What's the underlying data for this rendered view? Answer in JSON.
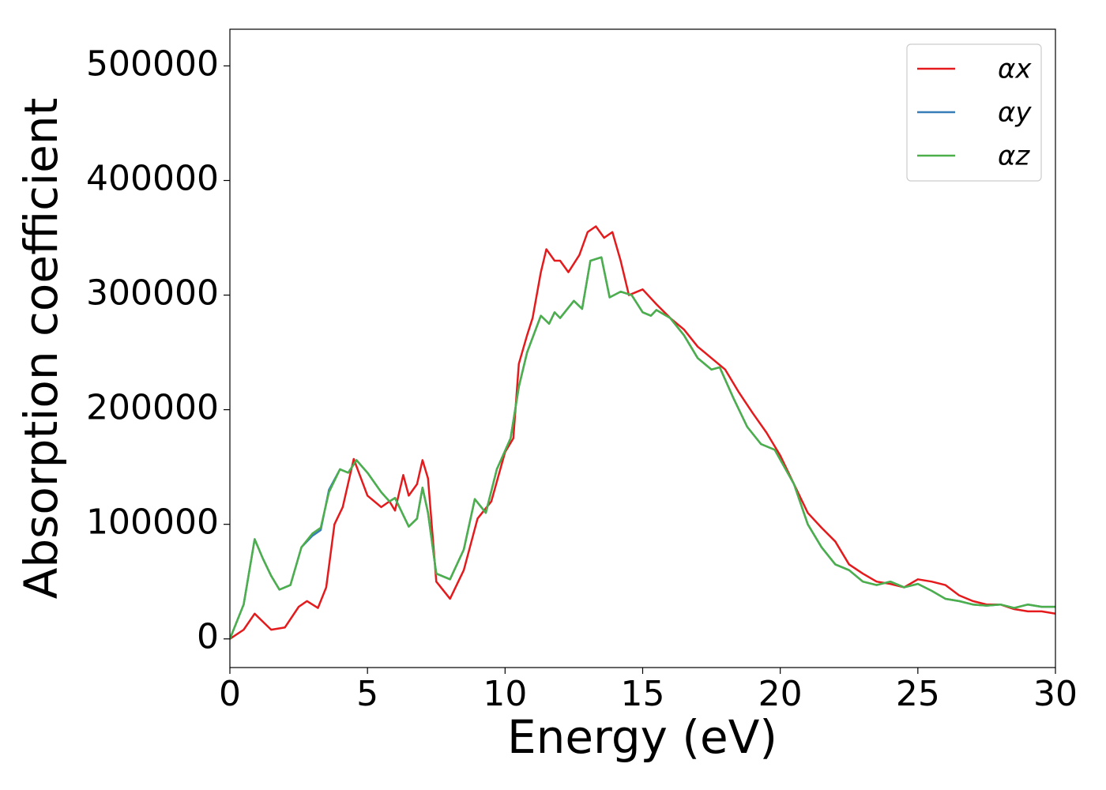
{
  "chart_data": {
    "type": "line",
    "xlabel": "Energy (eV)",
    "ylabel": "Absorption coefficient",
    "xlim": [
      0,
      30
    ],
    "ylim": [
      -25000,
      532000
    ],
    "xticks": [
      0,
      5,
      10,
      15,
      20,
      25,
      30
    ],
    "yticks": [
      0,
      100000,
      200000,
      300000,
      400000,
      500000
    ],
    "legend": "upper right",
    "series": [
      {
        "name": "αx",
        "color": "#e41a1c",
        "x": [
          0,
          0.5,
          0.9,
          1.2,
          1.5,
          2,
          2.5,
          2.8,
          3.2,
          3.5,
          3.8,
          4.1,
          4.5,
          5,
          5.5,
          5.8,
          6,
          6.3,
          6.5,
          6.8,
          7,
          7.2,
          7.5,
          8,
          8.5,
          9,
          9.5,
          10,
          10.3,
          10.5,
          10.8,
          11,
          11.3,
          11.5,
          11.8,
          12,
          12.3,
          12.7,
          13,
          13.3,
          13.6,
          13.9,
          14.2,
          14.5,
          15,
          15.5,
          16,
          16.5,
          17,
          17.5,
          18,
          18.5,
          19,
          19.5,
          20,
          20.5,
          21,
          21.5,
          22,
          22.5,
          23,
          23.5,
          24,
          24.5,
          25,
          25.5,
          26,
          26.5,
          27,
          27.5,
          28,
          28.5,
          29,
          29.5,
          30
        ],
        "values": [
          0,
          8000,
          22000,
          15000,
          8000,
          10000,
          28000,
          33000,
          27000,
          45000,
          100000,
          115000,
          157000,
          125000,
          115000,
          120000,
          112000,
          143000,
          125000,
          135000,
          156000,
          140000,
          50000,
          35000,
          60000,
          105000,
          120000,
          163000,
          175000,
          240000,
          265000,
          280000,
          320000,
          340000,
          330000,
          330000,
          320000,
          335000,
          355000,
          360000,
          350000,
          355000,
          330000,
          300000,
          305000,
          292000,
          280000,
          270000,
          255000,
          245000,
          235000,
          215000,
          197000,
          180000,
          160000,
          135000,
          110000,
          97000,
          85000,
          65000,
          57000,
          50000,
          48000,
          45000,
          52000,
          50000,
          47000,
          38000,
          33000,
          30000,
          30000,
          26000,
          24000,
          24000,
          22000
        ]
      },
      {
        "name": "αy",
        "color": "#377eb8",
        "x": [
          0,
          0.5,
          0.9,
          1.2,
          1.5,
          1.8,
          2.2,
          2.6,
          3,
          3.3,
          3.6,
          4,
          4.3,
          4.6,
          5,
          5.5,
          5.8,
          6,
          6.5,
          6.8,
          7,
          7.2,
          7.5,
          8,
          8.5,
          8.9,
          9.3,
          9.7,
          10.2,
          10.5,
          10.8,
          11.3,
          11.6,
          11.8,
          12,
          12.5,
          12.8,
          13.1,
          13.5,
          13.8,
          14.2,
          14.6,
          15,
          15.3,
          15.5,
          16,
          16.5,
          17,
          17.5,
          17.8,
          18.3,
          18.8,
          19.3,
          19.8,
          20.5,
          21,
          21.5,
          22,
          22.5,
          23,
          23.5,
          24,
          24.5,
          25,
          25.5,
          26,
          26.5,
          27,
          27.5,
          28,
          28.5,
          29,
          29.5,
          30
        ],
        "values": [
          0,
          30000,
          87000,
          70000,
          55000,
          43000,
          47000,
          80000,
          90000,
          95000,
          130000,
          148000,
          145000,
          156000,
          145000,
          128000,
          120000,
          123000,
          98000,
          105000,
          132000,
          110000,
          57000,
          52000,
          78000,
          122000,
          110000,
          148000,
          175000,
          220000,
          250000,
          282000,
          275000,
          285000,
          280000,
          295000,
          288000,
          330000,
          333000,
          298000,
          303000,
          300000,
          285000,
          282000,
          287000,
          280000,
          265000,
          245000,
          235000,
          237000,
          210000,
          185000,
          170000,
          165000,
          135000,
          100000,
          80000,
          65000,
          60000,
          50000,
          47000,
          50000,
          45000,
          48000,
          42000,
          35000,
          33000,
          30000,
          29000,
          30000,
          27000,
          30000,
          28000,
          28000
        ]
      },
      {
        "name": "αz",
        "color": "#4daf4a",
        "x": [
          0,
          0.5,
          0.9,
          1.2,
          1.5,
          1.8,
          2.2,
          2.6,
          3,
          3.3,
          3.6,
          4,
          4.3,
          4.6,
          5,
          5.5,
          5.8,
          6,
          6.5,
          6.8,
          7,
          7.2,
          7.5,
          8,
          8.5,
          8.9,
          9.3,
          9.7,
          10.2,
          10.5,
          10.8,
          11.3,
          11.6,
          11.8,
          12,
          12.5,
          12.8,
          13.1,
          13.5,
          13.8,
          14.2,
          14.6,
          15,
          15.3,
          15.5,
          16,
          16.5,
          17,
          17.5,
          17.8,
          18.3,
          18.8,
          19.3,
          19.8,
          20.5,
          21,
          21.5,
          22,
          22.5,
          23,
          23.5,
          24,
          24.5,
          25,
          25.5,
          26,
          26.5,
          27,
          27.5,
          28,
          28.5,
          29,
          29.5,
          30
        ],
        "values": [
          0,
          30000,
          87000,
          70000,
          55000,
          43000,
          47000,
          80000,
          92000,
          97000,
          128000,
          148000,
          145000,
          156000,
          145000,
          128000,
          120000,
          123000,
          98000,
          105000,
          132000,
          110000,
          57000,
          52000,
          78000,
          122000,
          110000,
          148000,
          175000,
          220000,
          250000,
          282000,
          275000,
          285000,
          280000,
          295000,
          288000,
          330000,
          333000,
          298000,
          303000,
          300000,
          285000,
          282000,
          287000,
          280000,
          265000,
          245000,
          235000,
          237000,
          210000,
          185000,
          170000,
          165000,
          135000,
          100000,
          80000,
          65000,
          60000,
          50000,
          47000,
          50000,
          45000,
          48000,
          42000,
          35000,
          33000,
          30000,
          29000,
          30000,
          27000,
          30000,
          28000,
          28000
        ]
      }
    ]
  }
}
